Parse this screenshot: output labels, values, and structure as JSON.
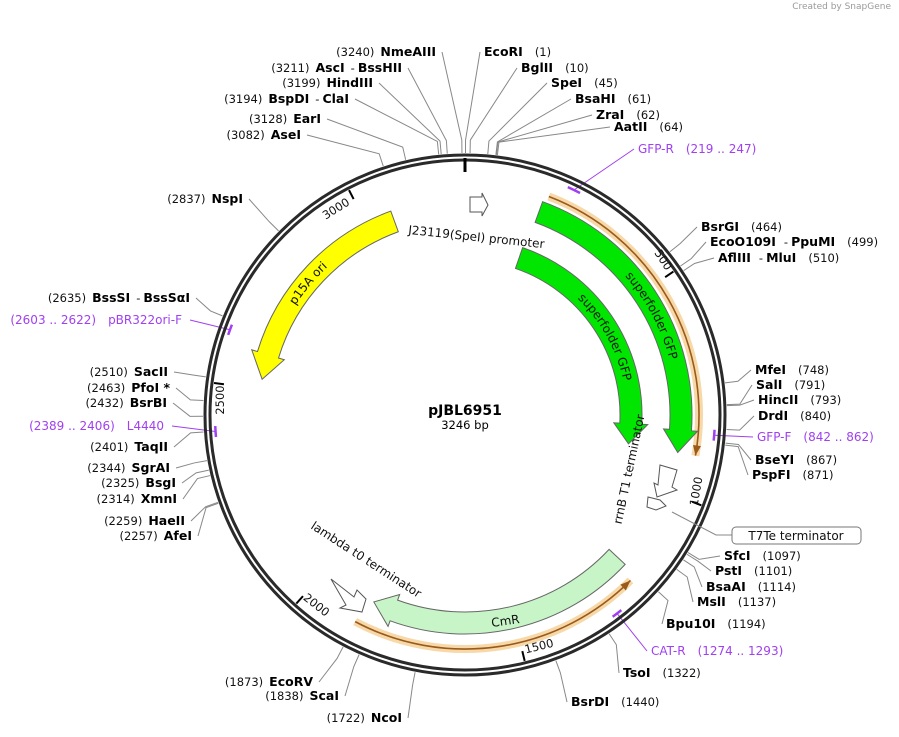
{
  "credit": "Created by SnapGene",
  "plasmid": {
    "name": "pJBL6951",
    "length_label": "3246 bp",
    "length": 3246
  },
  "ticks": [
    "500",
    "1000",
    "1500",
    "2000",
    "2500",
    "3000"
  ],
  "features": {
    "p15a": "p15A ori",
    "sfgfp1": "superfolder GFP",
    "sfgfp2": "superfolder GFP",
    "cmr": "CmR",
    "promoter": "J23119(SpeI) promoter",
    "rrnb": "rrnB T1 terminator",
    "t7te": "T7Te terminator",
    "lambda": "lambda t0 terminator"
  },
  "colors": {
    "ori": "#ffff00",
    "gfp": "#00e600",
    "cmr": "#c8f5c8",
    "primer": "#a040f0",
    "orange": "#f0b860"
  },
  "enzymes": [
    {
      "name": "EcoRI",
      "pos": "(1)",
      "bp": 1
    },
    {
      "name": "BglII",
      "pos": "(10)",
      "bp": 10
    },
    {
      "name": "SpeI",
      "pos": "(45)",
      "bp": 45
    },
    {
      "name": "BsaHI",
      "pos": "(61)",
      "bp": 61
    },
    {
      "name": "ZraI",
      "pos": "(62)",
      "bp": 62
    },
    {
      "name": "AatII",
      "pos": "(64)",
      "bp": 64
    },
    {
      "name": "BsrGI",
      "pos": "(464)",
      "bp": 464
    },
    {
      "name": "EcoO109I",
      "name2": "PpuMI",
      "pos": "(499)",
      "bp": 499
    },
    {
      "name": "AflIII",
      "name2": "MluI",
      "pos": "(510)",
      "bp": 510
    },
    {
      "name": "MfeI",
      "pos": "(748)",
      "bp": 748
    },
    {
      "name": "SalI",
      "pos": "(791)",
      "bp": 791
    },
    {
      "name": "HincII",
      "pos": "(793)",
      "bp": 793
    },
    {
      "name": "DrdI",
      "pos": "(840)",
      "bp": 840
    },
    {
      "name": "BseYI",
      "pos": "(867)",
      "bp": 867
    },
    {
      "name": "PspFI",
      "pos": "(871)",
      "bp": 871
    },
    {
      "name": "SfcI",
      "pos": "(1097)",
      "bp": 1097
    },
    {
      "name": "PstI",
      "pos": "(1101)",
      "bp": 1101
    },
    {
      "name": "BsaAI",
      "pos": "(1114)",
      "bp": 1114
    },
    {
      "name": "MslI",
      "pos": "(1137)",
      "bp": 1137
    },
    {
      "name": "Bpu10I",
      "pos": "(1194)",
      "bp": 1194
    },
    {
      "name": "TsoI",
      "pos": "(1322)",
      "bp": 1322
    },
    {
      "name": "BsrDI",
      "pos": "(1440)",
      "bp": 1440
    },
    {
      "name": "NcoI",
      "pos": "(1722)",
      "bp": 1722
    },
    {
      "name": "ScaI",
      "pos": "(1838)",
      "bp": 1838
    },
    {
      "name": "EcoRV",
      "pos": "(1873)",
      "bp": 1873
    },
    {
      "name": "AfeI",
      "pos": "(2257)",
      "bp": 2257
    },
    {
      "name": "HaeII",
      "pos": "(2259)",
      "bp": 2259
    },
    {
      "name": "XmnI",
      "pos": "(2314)",
      "bp": 2314
    },
    {
      "name": "BsgI",
      "pos": "(2325)",
      "bp": 2325
    },
    {
      "name": "SgrAI",
      "pos": "(2344)",
      "bp": 2344
    },
    {
      "name": "TaqII",
      "pos": "(2401)",
      "bp": 2401
    },
    {
      "name": "BsrBI",
      "pos": "(2432)",
      "bp": 2432
    },
    {
      "name": "PfoI *",
      "pos": "(2463)",
      "bp": 2463
    },
    {
      "name": "SacII",
      "pos": "(2510)",
      "bp": 2510
    },
    {
      "name": "BssSI",
      "name2": "BssSαI",
      "pos": "(2635)",
      "bp": 2635
    },
    {
      "name": "NspI",
      "pos": "(2837)",
      "bp": 2837
    },
    {
      "name": "AseI",
      "pos": "(3082)",
      "bp": 3082
    },
    {
      "name": "EarI",
      "pos": "(3128)",
      "bp": 3128
    },
    {
      "name": "BspDI",
      "name2": "ClaI",
      "pos": "(3194)",
      "bp": 3194
    },
    {
      "name": "HindIII",
      "pos": "(3199)",
      "bp": 3199
    },
    {
      "name": "AscI",
      "name2": "BssHII",
      "pos": "(3211)",
      "bp": 3211
    },
    {
      "name": "NmeAIII",
      "pos": "(3240)",
      "bp": 3240
    }
  ],
  "primers": [
    {
      "name": "GFP-R",
      "range": "(219 .. 247)",
      "start": 219,
      "end": 247
    },
    {
      "name": "GFP-F",
      "range": "(842 .. 862)",
      "start": 842,
      "end": 862
    },
    {
      "name": "CAT-R",
      "range": "(1274 .. 1293)",
      "start": 1274,
      "end": 1293
    },
    {
      "name": "L4440",
      "range": "(2389 .. 2406)",
      "start": 2389,
      "end": 2406
    },
    {
      "name": "pBR322ori-F",
      "range": "(2603 .. 2622)",
      "start": 2603,
      "end": 2622
    }
  ]
}
